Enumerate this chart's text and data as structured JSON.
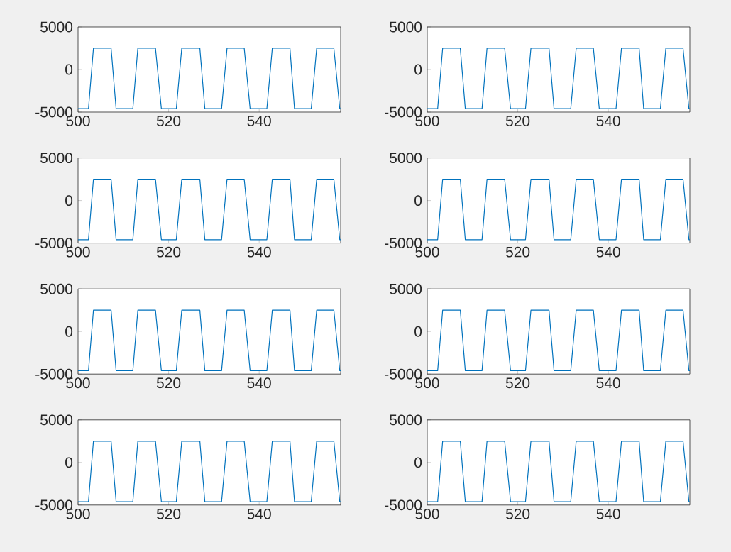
{
  "chart_data": [
    {
      "type": "line",
      "x": [
        500,
        502.3,
        503.4,
        507.3,
        508.4,
        512.1,
        513.2,
        517.1,
        518.4,
        521.7,
        522.9,
        526.9,
        528.0,
        531.7,
        532.9,
        536.7,
        538.0,
        541.7,
        542.9,
        546.8,
        547.8,
        551.5,
        552.7,
        556.5,
        557.8,
        558
      ],
      "values": [
        -4600,
        -4600,
        2500,
        2500,
        -4600,
        -4600,
        2500,
        2500,
        -4600,
        -4600,
        2500,
        2500,
        -4600,
        -4600,
        2500,
        2500,
        -4600,
        -4600,
        2500,
        2500,
        -4600,
        -4600,
        2500,
        2500,
        -4600,
        -4600
      ],
      "color": "#0072bd",
      "xlim": [
        500,
        558
      ],
      "ylim": [
        -5000,
        5000
      ],
      "xticks": [
        500,
        520,
        540
      ],
      "yticks": [
        -5000,
        0,
        5000
      ]
    },
    {
      "type": "line",
      "x": [
        500,
        502.3,
        503.4,
        507.3,
        508.4,
        512.1,
        513.2,
        517.1,
        518.4,
        521.7,
        522.9,
        526.9,
        528.0,
        531.7,
        532.9,
        536.7,
        538.0,
        541.7,
        542.9,
        546.8,
        547.8,
        551.5,
        552.7,
        556.5,
        557.8,
        558
      ],
      "values": [
        -4600,
        -4600,
        2500,
        2500,
        -4600,
        -4600,
        2500,
        2500,
        -4600,
        -4600,
        2500,
        2500,
        -4600,
        -4600,
        2500,
        2500,
        -4600,
        -4600,
        2500,
        2500,
        -4600,
        -4600,
        2500,
        2500,
        -4600,
        -4600
      ],
      "color": "#0072bd",
      "xlim": [
        500,
        558
      ],
      "ylim": [
        -5000,
        5000
      ],
      "xticks": [
        500,
        520,
        540
      ],
      "yticks": [
        -5000,
        0,
        5000
      ]
    },
    {
      "type": "line",
      "x": [
        500,
        502.3,
        503.4,
        507.3,
        508.4,
        512.1,
        513.2,
        517.1,
        518.4,
        521.7,
        522.9,
        526.9,
        528.0,
        531.7,
        532.9,
        536.7,
        538.0,
        541.7,
        542.9,
        546.8,
        547.8,
        551.5,
        552.7,
        556.5,
        557.8,
        558
      ],
      "values": [
        -4600,
        -4600,
        2500,
        2500,
        -4600,
        -4600,
        2500,
        2500,
        -4600,
        -4600,
        2500,
        2500,
        -4600,
        -4600,
        2500,
        2500,
        -4600,
        -4600,
        2500,
        2500,
        -4600,
        -4600,
        2500,
        2500,
        -4600,
        -4600
      ],
      "color": "#0072bd",
      "xlim": [
        500,
        558
      ],
      "ylim": [
        -5000,
        5000
      ],
      "xticks": [
        500,
        520,
        540
      ],
      "yticks": [
        -5000,
        0,
        5000
      ]
    },
    {
      "type": "line",
      "x": [
        500,
        502.3,
        503.4,
        507.3,
        508.4,
        512.1,
        513.2,
        517.1,
        518.4,
        521.7,
        522.9,
        526.9,
        528.0,
        531.7,
        532.9,
        536.7,
        538.0,
        541.7,
        542.9,
        546.8,
        547.8,
        551.5,
        552.7,
        556.5,
        557.8,
        558
      ],
      "values": [
        -4600,
        -4600,
        2500,
        2500,
        -4600,
        -4600,
        2500,
        2500,
        -4600,
        -4600,
        2500,
        2500,
        -4600,
        -4600,
        2500,
        2500,
        -4600,
        -4600,
        2500,
        2500,
        -4600,
        -4600,
        2500,
        2500,
        -4600,
        -4600
      ],
      "color": "#0072bd",
      "xlim": [
        500,
        558
      ],
      "ylim": [
        -5000,
        5000
      ],
      "xticks": [
        500,
        520,
        540
      ],
      "yticks": [
        -5000,
        0,
        5000
      ]
    },
    {
      "type": "line",
      "x": [
        500,
        502.3,
        503.4,
        507.3,
        508.4,
        512.1,
        513.2,
        517.1,
        518.4,
        521.7,
        522.9,
        526.9,
        528.0,
        531.7,
        532.9,
        536.7,
        538.0,
        541.7,
        542.9,
        546.8,
        547.8,
        551.5,
        552.7,
        556.5,
        557.8,
        558
      ],
      "values": [
        -4600,
        -4600,
        2500,
        2500,
        -4600,
        -4600,
        2500,
        2500,
        -4600,
        -4600,
        2500,
        2500,
        -4600,
        -4600,
        2500,
        2500,
        -4600,
        -4600,
        2500,
        2500,
        -4600,
        -4600,
        2500,
        2500,
        -4600,
        -4600
      ],
      "color": "#0072bd",
      "xlim": [
        500,
        558
      ],
      "ylim": [
        -5000,
        5000
      ],
      "xticks": [
        500,
        520,
        540
      ],
      "yticks": [
        -5000,
        0,
        5000
      ]
    },
    {
      "type": "line",
      "x": [
        500,
        502.3,
        503.4,
        507.3,
        508.4,
        512.1,
        513.2,
        517.1,
        518.4,
        521.7,
        522.9,
        526.9,
        528.0,
        531.7,
        532.9,
        536.7,
        538.0,
        541.7,
        542.9,
        546.8,
        547.8,
        551.5,
        552.7,
        556.5,
        557.8,
        558
      ],
      "values": [
        -4600,
        -4600,
        2500,
        2500,
        -4600,
        -4600,
        2500,
        2500,
        -4600,
        -4600,
        2500,
        2500,
        -4600,
        -4600,
        2500,
        2500,
        -4600,
        -4600,
        2500,
        2500,
        -4600,
        -4600,
        2500,
        2500,
        -4600,
        -4600
      ],
      "color": "#0072bd",
      "xlim": [
        500,
        558
      ],
      "ylim": [
        -5000,
        5000
      ],
      "xticks": [
        500,
        520,
        540
      ],
      "yticks": [
        -5000,
        0,
        5000
      ]
    },
    {
      "type": "line",
      "x": [
        500,
        502.3,
        503.4,
        507.3,
        508.4,
        512.1,
        513.2,
        517.1,
        518.4,
        521.7,
        522.9,
        526.9,
        528.0,
        531.7,
        532.9,
        536.7,
        538.0,
        541.7,
        542.9,
        546.8,
        547.8,
        551.5,
        552.7,
        556.5,
        557.8,
        558
      ],
      "values": [
        -4600,
        -4600,
        2500,
        2500,
        -4600,
        -4600,
        2500,
        2500,
        -4600,
        -4600,
        2500,
        2500,
        -4600,
        -4600,
        2500,
        2500,
        -4600,
        -4600,
        2500,
        2500,
        -4600,
        -4600,
        2500,
        2500,
        -4600,
        -4600
      ],
      "color": "#0072bd",
      "xlim": [
        500,
        558
      ],
      "ylim": [
        -5000,
        5000
      ],
      "xticks": [
        500,
        520,
        540
      ],
      "yticks": [
        -5000,
        0,
        5000
      ]
    },
    {
      "type": "line",
      "x": [
        500,
        502.3,
        503.4,
        507.3,
        508.4,
        512.1,
        513.2,
        517.1,
        518.4,
        521.7,
        522.9,
        526.9,
        528.0,
        531.7,
        532.9,
        536.7,
        538.0,
        541.7,
        542.9,
        546.8,
        547.8,
        551.5,
        552.7,
        556.5,
        557.8,
        558
      ],
      "values": [
        -4600,
        -4600,
        2500,
        2500,
        -4600,
        -4600,
        2500,
        2500,
        -4600,
        -4600,
        2500,
        2500,
        -4600,
        -4600,
        2500,
        2500,
        -4600,
        -4600,
        2500,
        2500,
        -4600,
        -4600,
        2500,
        2500,
        -4600,
        -4600
      ],
      "color": "#0072bd",
      "xlim": [
        500,
        558
      ],
      "ylim": [
        -5000,
        5000
      ],
      "xticks": [
        500,
        520,
        540
      ],
      "yticks": [
        -5000,
        0,
        5000
      ]
    }
  ]
}
